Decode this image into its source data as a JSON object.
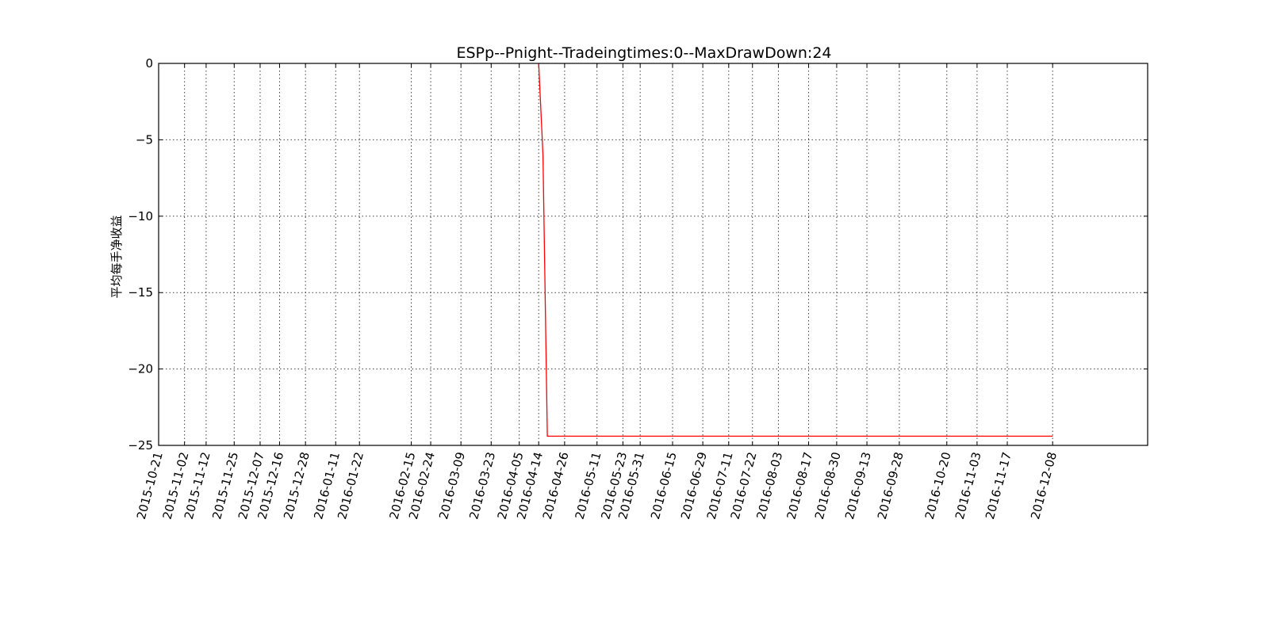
{
  "chart_data": {
    "type": "line",
    "title": "ESPp--Pnight--Tradeingtimes:0--MaxDrawDown:24",
    "xlabel": "",
    "ylabel": "平均每手净收益",
    "ylim": [
      -25,
      0
    ],
    "yticks": [
      0,
      -5,
      -10,
      -15,
      -20,
      -25
    ],
    "yticklabels": [
      "0",
      "−5",
      "−10",
      "−15",
      "−20",
      "−25"
    ],
    "xlim": [
      "2015-10-21",
      "2017-01-21"
    ],
    "xticks": [
      "2015-10-21",
      "2015-11-02",
      "2015-11-12",
      "2015-11-25",
      "2015-12-07",
      "2015-12-16",
      "2015-12-28",
      "2016-01-11",
      "2016-01-22",
      "2016-02-15",
      "2016-02-24",
      "2016-03-09",
      "2016-03-23",
      "2016-04-05",
      "2016-04-14",
      "2016-04-26",
      "2016-05-11",
      "2016-05-23",
      "2016-05-31",
      "2016-06-15",
      "2016-06-29",
      "2016-07-11",
      "2016-07-22",
      "2016-08-03",
      "2016-08-17",
      "2016-08-30",
      "2016-09-13",
      "2016-09-28",
      "2016-10-20",
      "2016-11-03",
      "2016-11-17",
      "2016-12-08"
    ],
    "grid": true,
    "series": [
      {
        "name": "",
        "color": "#ff0000",
        "x": [
          "2016-04-14",
          "2016-04-16",
          "2016-04-18",
          "2016-12-08"
        ],
        "y": [
          0,
          -6,
          -24.4,
          -24.4
        ]
      }
    ]
  }
}
